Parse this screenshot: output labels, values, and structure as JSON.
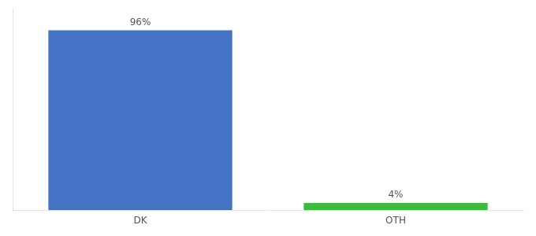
{
  "chart_data": {
    "type": "bar",
    "categories": [
      "DK",
      "OTH"
    ],
    "values": [
      96,
      4
    ],
    "value_labels": [
      "96%",
      "4%"
    ],
    "colors": [
      "#4472c4",
      "#3dbb3d"
    ],
    "ylim": [
      0,
      108
    ],
    "grid": false,
    "data_labels": true,
    "tick_labels": "x"
  }
}
